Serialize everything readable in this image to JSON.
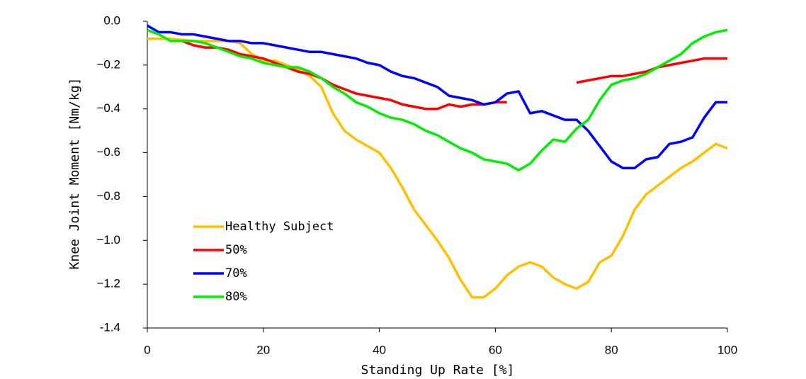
{
  "chart_data": {
    "type": "line",
    "xlabel": "Standing Up Rate [%]",
    "ylabel": "Knee Joint Moment [Nm/kg]",
    "x": [
      0,
      2,
      4,
      6,
      8,
      10,
      12,
      14,
      16,
      18,
      20,
      22,
      24,
      26,
      28,
      30,
      32,
      34,
      36,
      38,
      40,
      42,
      44,
      46,
      48,
      50,
      52,
      54,
      56,
      58,
      60,
      62,
      64,
      66,
      68,
      70,
      72,
      74,
      76,
      78,
      80,
      82,
      84,
      86,
      88,
      90,
      92,
      94,
      96,
      98,
      100
    ],
    "series": [
      {
        "name": "Healthy Subject",
        "color": "#ffc000",
        "values": [
          -0.08,
          -0.08,
          -0.08,
          -0.085,
          -0.09,
          -0.09,
          -0.09,
          -0.09,
          -0.1,
          -0.15,
          -0.18,
          -0.18,
          -0.2,
          -0.22,
          -0.25,
          -0.3,
          -0.42,
          -0.5,
          -0.54,
          -0.57,
          -0.6,
          -0.67,
          -0.76,
          -0.86,
          -0.93,
          -1.0,
          -1.08,
          -1.18,
          -1.26,
          -1.26,
          -1.22,
          -1.16,
          -1.12,
          -1.1,
          -1.12,
          -1.17,
          -1.2,
          -1.22,
          -1.19,
          -1.1,
          -1.07,
          -0.98,
          -0.86,
          -0.79,
          -0.75,
          -0.71,
          -0.67,
          -0.64,
          -0.6,
          -0.56,
          -0.58
        ]
      },
      {
        "name": "50%",
        "color": "#ff0000",
        "values": [
          null,
          null,
          null,
          -0.09,
          -0.11,
          -0.12,
          -0.12,
          -0.13,
          -0.15,
          -0.16,
          -0.17,
          -0.19,
          -0.21,
          -0.23,
          -0.24,
          -0.26,
          -0.29,
          -0.31,
          -0.33,
          -0.34,
          -0.35,
          -0.36,
          -0.38,
          -0.39,
          -0.4,
          -0.4,
          -0.38,
          -0.39,
          -0.38,
          -0.38,
          -0.37,
          -0.37,
          null,
          null,
          null,
          null,
          null,
          -0.28,
          -0.27,
          -0.26,
          -0.25,
          -0.25,
          -0.24,
          -0.23,
          -0.21,
          -0.2,
          -0.19,
          -0.18,
          -0.17,
          -0.17,
          -0.17
        ]
      },
      {
        "name": "70%",
        "color": "#0000ff",
        "values": [
          -0.02,
          -0.05,
          -0.05,
          -0.06,
          -0.06,
          -0.07,
          -0.08,
          -0.09,
          -0.09,
          -0.1,
          -0.1,
          -0.11,
          -0.12,
          -0.13,
          -0.14,
          -0.14,
          -0.15,
          -0.16,
          -0.17,
          -0.19,
          -0.2,
          -0.23,
          -0.25,
          -0.26,
          -0.28,
          -0.3,
          -0.34,
          -0.35,
          -0.36,
          -0.38,
          -0.37,
          -0.33,
          -0.32,
          -0.42,
          -0.41,
          -0.43,
          -0.45,
          -0.45,
          -0.5,
          -0.57,
          -0.64,
          -0.67,
          -0.67,
          -0.63,
          -0.62,
          -0.56,
          -0.55,
          -0.53,
          -0.44,
          -0.37,
          -0.37
        ]
      },
      {
        "name": "80%",
        "color": "#00ee00",
        "values": [
          -0.04,
          -0.06,
          -0.09,
          -0.09,
          -0.09,
          -0.1,
          -0.12,
          -0.14,
          -0.16,
          -0.17,
          -0.19,
          -0.2,
          -0.21,
          -0.21,
          -0.23,
          -0.26,
          -0.3,
          -0.33,
          -0.37,
          -0.39,
          -0.42,
          -0.44,
          -0.45,
          -0.47,
          -0.5,
          -0.52,
          -0.55,
          -0.58,
          -0.6,
          -0.63,
          -0.64,
          -0.65,
          -0.68,
          -0.65,
          -0.59,
          -0.54,
          -0.55,
          -0.49,
          -0.45,
          -0.36,
          -0.29,
          -0.27,
          -0.26,
          -0.24,
          -0.21,
          -0.18,
          -0.15,
          -0.1,
          -0.07,
          -0.05,
          -0.04
        ]
      }
    ],
    "xlim": [
      0,
      100
    ],
    "xticks": [
      0,
      20,
      40,
      60,
      80,
      100
    ],
    "ylim": [
      -1.4,
      0
    ],
    "yticks": [
      {
        "value": 0,
        "label": "0.0"
      },
      {
        "value": -0.2,
        "label": "−0.2"
      },
      {
        "value": -0.4,
        "label": "−0.4"
      },
      {
        "value": -0.6,
        "label": "−0.6"
      },
      {
        "value": -0.8,
        "label": "−0.8"
      },
      {
        "value": -1.0,
        "label": "−1.0"
      },
      {
        "value": -1.2,
        "label": "−1.2"
      },
      {
        "value": -1.4,
        "label": "-1.4"
      }
    ],
    "grid": false
  }
}
